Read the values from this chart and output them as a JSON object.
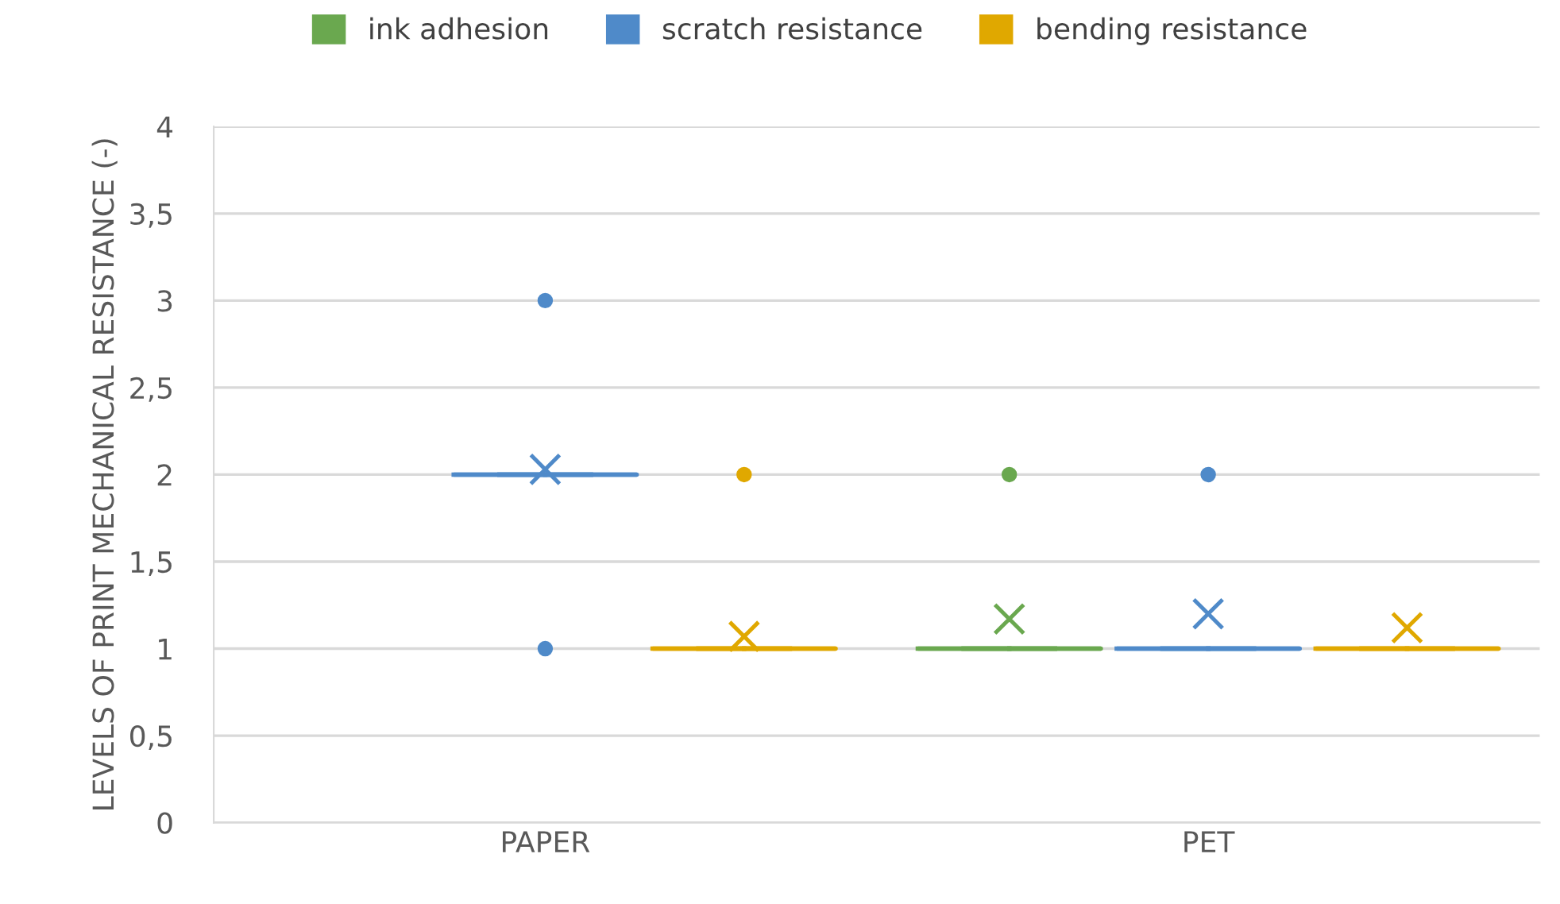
{
  "chart_data": {
    "type": "box",
    "ylabel": "LEVELS OF PRINT MECHANICAL RESISTANCE (-)",
    "categories": [
      "PAPER",
      "PET"
    ],
    "ylim": [
      0,
      4
    ],
    "yticks": [
      0,
      {
        "value": 0.5,
        "label": "0,5"
      },
      1,
      {
        "value": 1.5,
        "label": "1,5"
      },
      2,
      {
        "value": 2.5,
        "label": "2,5"
      },
      3,
      {
        "value": 3.5,
        "label": "3,5"
      },
      4
    ],
    "grid": "y",
    "legend": "top",
    "marker": "circle",
    "series": [
      {
        "name": "ink adhesion",
        "color": "#6aa84f",
        "boxes": [
          null,
          {
            "low": 1,
            "q1": 1,
            "median": 1,
            "q3": 1,
            "high": 1,
            "mean": 1.17,
            "outliers": [
              2
            ]
          }
        ]
      },
      {
        "name": "scratch resistance",
        "color": "#4f8ac9",
        "boxes": [
          {
            "low": 2,
            "q1": 2,
            "median": 2,
            "q3": 2,
            "high": 2,
            "mean": 2.03,
            "outliers": [
              3,
              1
            ]
          },
          {
            "low": 1,
            "q1": 1,
            "median": 1,
            "q3": 1,
            "high": 1,
            "mean": 1.2,
            "outliers": [
              2
            ]
          }
        ]
      },
      {
        "name": "bending resistance",
        "color": "#e0a800",
        "boxes": [
          {
            "low": 1,
            "q1": 1,
            "median": 1,
            "q3": 1,
            "high": 1,
            "mean": 1.07,
            "outliers": [
              2
            ]
          },
          {
            "low": 1,
            "q1": 1,
            "median": 1,
            "q3": 1,
            "high": 1,
            "mean": 1.12
          }
        ]
      }
    ]
  }
}
